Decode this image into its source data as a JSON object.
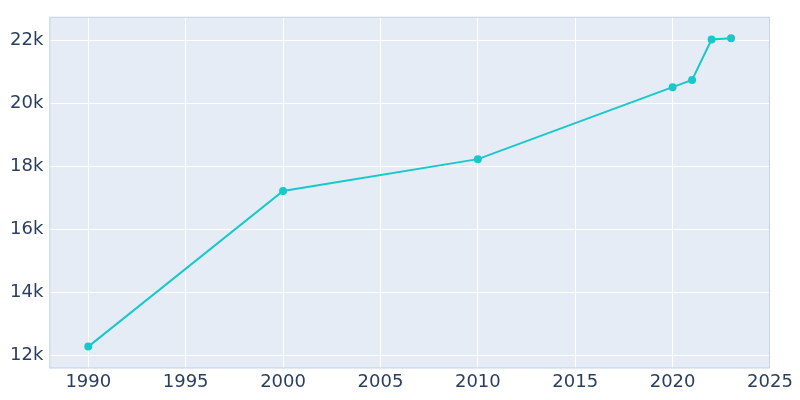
{
  "chart_data": {
    "type": "line",
    "x": [
      1990,
      2000,
      2010,
      2020,
      2021,
      2022,
      2023
    ],
    "values": [
      12290,
      17220,
      18230,
      20510,
      20740,
      22020,
      22060
    ],
    "color": "#17c9c9",
    "marker": "circle",
    "line_style": "solid",
    "xlim": [
      1988,
      2025
    ],
    "xticks": [
      1990,
      1995,
      2000,
      2005,
      2010,
      2015,
      2020,
      2025
    ],
    "ylim": [
      11600,
      22740
    ],
    "yticks": [
      {
        "value": 12000,
        "label": "12k"
      },
      {
        "value": 14000,
        "label": "14k"
      },
      {
        "value": 16000,
        "label": "16k"
      },
      {
        "value": 18000,
        "label": "18k"
      },
      {
        "value": 20000,
        "label": "20k"
      },
      {
        "value": 22000,
        "label": "22k"
      }
    ],
    "grid": true
  }
}
